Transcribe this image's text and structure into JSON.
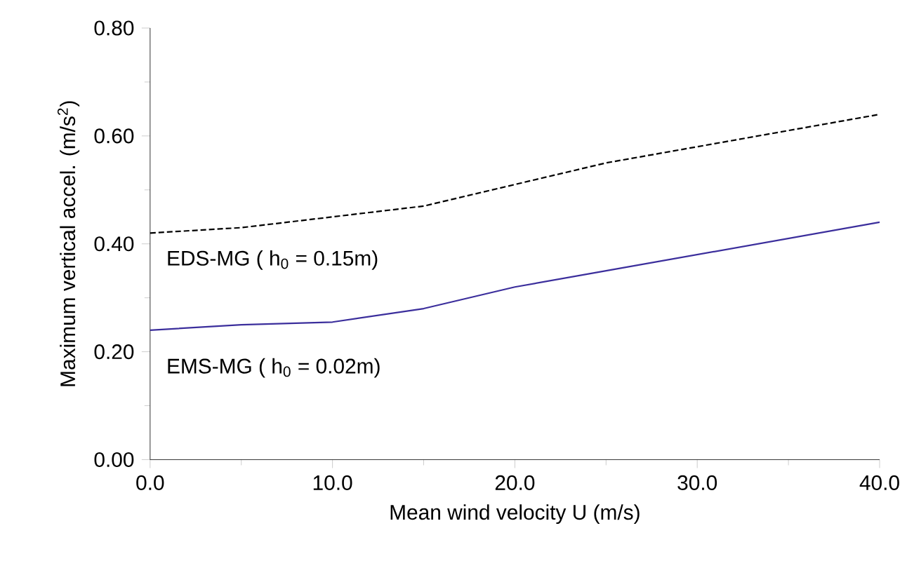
{
  "chart_data": {
    "type": "line",
    "xlabel": "Mean wind velocity U (m/s)",
    "ylabel": "Maximum vertical accel. (m/s$^{2}$)",
    "x": [
      0,
      5,
      10,
      15,
      20,
      25,
      30,
      35,
      40
    ],
    "series": [
      {
        "name": "EDS-MG ( h$_{0}$ = 0.15m)",
        "color": "#000000",
        "line_style": "dashed",
        "values": [
          0.42,
          0.43,
          0.45,
          0.47,
          0.51,
          0.55,
          0.58,
          0.61,
          0.64
        ]
      },
      {
        "name": "EMS-MG ( h$_{0}$ = 0.02m)",
        "color": "#3b2e9c",
        "line_style": "solid",
        "values": [
          0.24,
          0.25,
          0.255,
          0.28,
          0.32,
          0.35,
          0.38,
          0.41,
          0.44
        ]
      }
    ],
    "xlim": [
      0,
      40
    ],
    "xticks": [
      {
        "value": 0,
        "label": "0.0"
      },
      {
        "value": 10,
        "label": "10.0"
      },
      {
        "value": 20,
        "label": "20.0"
      },
      {
        "value": 30,
        "label": "30.0"
      },
      {
        "value": 40,
        "label": "40.0"
      }
    ],
    "ylim": [
      0,
      0.8
    ],
    "yticks": [
      {
        "value": 0,
        "label": "0.00"
      },
      {
        "value": 0.2,
        "label": "0.20"
      },
      {
        "value": 0.4,
        "label": "0.40"
      },
      {
        "value": 0.6,
        "label": "0.60"
      },
      {
        "value": 0.8,
        "label": "0.80"
      }
    ],
    "grid": false,
    "legend": false,
    "marker": "none"
  }
}
